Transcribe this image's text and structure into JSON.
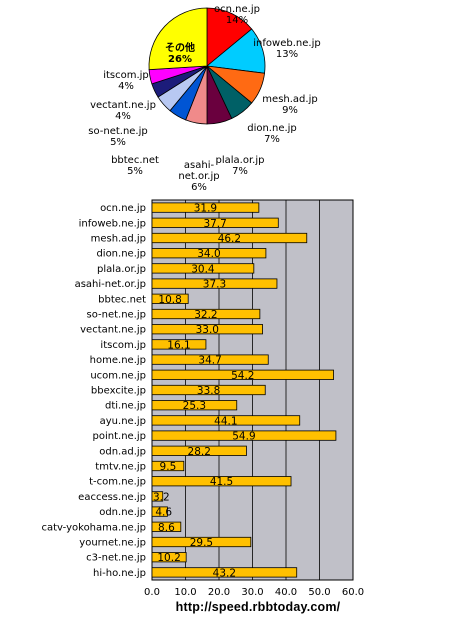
{
  "source_url": "http://speed.rbbtoday.com/",
  "colors": {
    "plot_bg": "#c0c0c8",
    "bar_fill": "#ffc000",
    "bar_stroke": "#000000",
    "grid": "#000000"
  },
  "chart_data": [
    {
      "type": "pie",
      "unit": "%",
      "slices": [
        {
          "label": "ocn.ne.jp",
          "value": 14,
          "color": "#ff0000"
        },
        {
          "label": "infoweb.ne.jp",
          "value": 13,
          "color": "#00ccff"
        },
        {
          "label": "mesh.ad.jp",
          "value": 9,
          "color": "#ff6a13"
        },
        {
          "label": "dion.ne.jp",
          "value": 7,
          "color": "#006066"
        },
        {
          "label": "plala.or.jp",
          "value": 7,
          "color": "#6a003e"
        },
        {
          "label": "asahi-net.or.jp",
          "value": 6,
          "color": "#f08a8a"
        },
        {
          "label": "bbtec.net",
          "value": 5,
          "color": "#0055d4"
        },
        {
          "label": "so-net.ne.jp",
          "value": 5,
          "color": "#b8c8f2"
        },
        {
          "label": "vectant.ne.jp",
          "value": 4,
          "color": "#1c1c7a"
        },
        {
          "label": "itscom.jp",
          "value": 4,
          "color": "#ff00ff"
        },
        {
          "label": "その他",
          "value": 26,
          "color": "#ffff00"
        }
      ]
    },
    {
      "type": "bar",
      "orientation": "horizontal",
      "categories": [
        "ocn.ne.jp",
        "infoweb.ne.jp",
        "mesh.ad.jp",
        "dion.ne.jp",
        "plala.or.jp",
        "asahi-net.or.jp",
        "bbtec.net",
        "so-net.ne.jp",
        "vectant.ne.jp",
        "itscom.jp",
        "home.ne.jp",
        "ucom.ne.jp",
        "bbexcite.jp",
        "dti.ne.jp",
        "ayu.ne.jp",
        "point.ne.jp",
        "odn.ad.jp",
        "tmtv.ne.jp",
        "t-com.ne.jp",
        "eaccess.ne.jp",
        "odn.ne.jp",
        "catv-yokohama.ne.jp",
        "yournet.ne.jp",
        "c3-net.ne.jp",
        "hi-ho.ne.jp"
      ],
      "values": [
        31.9,
        37.7,
        46.2,
        34.0,
        30.4,
        37.3,
        10.8,
        32.2,
        33.0,
        16.1,
        34.7,
        54.2,
        33.8,
        25.3,
        44.1,
        54.9,
        28.2,
        9.5,
        41.5,
        3.2,
        4.6,
        8.6,
        29.5,
        10.2,
        43.2
      ],
      "value_labels": [
        "31.9",
        "37.7",
        "46.2",
        "34.0",
        "30.4",
        "37.3",
        "10.8",
        "32.2",
        "33.0",
        "16.1",
        "34.7",
        "54.2",
        "33.8",
        "25.3",
        "44.1",
        "54.9",
        "28.2",
        "9.5",
        "41.5",
        "3.2",
        "4.6",
        "8.6",
        "29.5",
        "10.2",
        "43.2"
      ],
      "xlim": [
        0,
        60
      ],
      "xticks": [
        "0.0",
        "10.0",
        "20.0",
        "30.0",
        "40.0",
        "50.0",
        "60.0"
      ],
      "grid": true
    }
  ]
}
